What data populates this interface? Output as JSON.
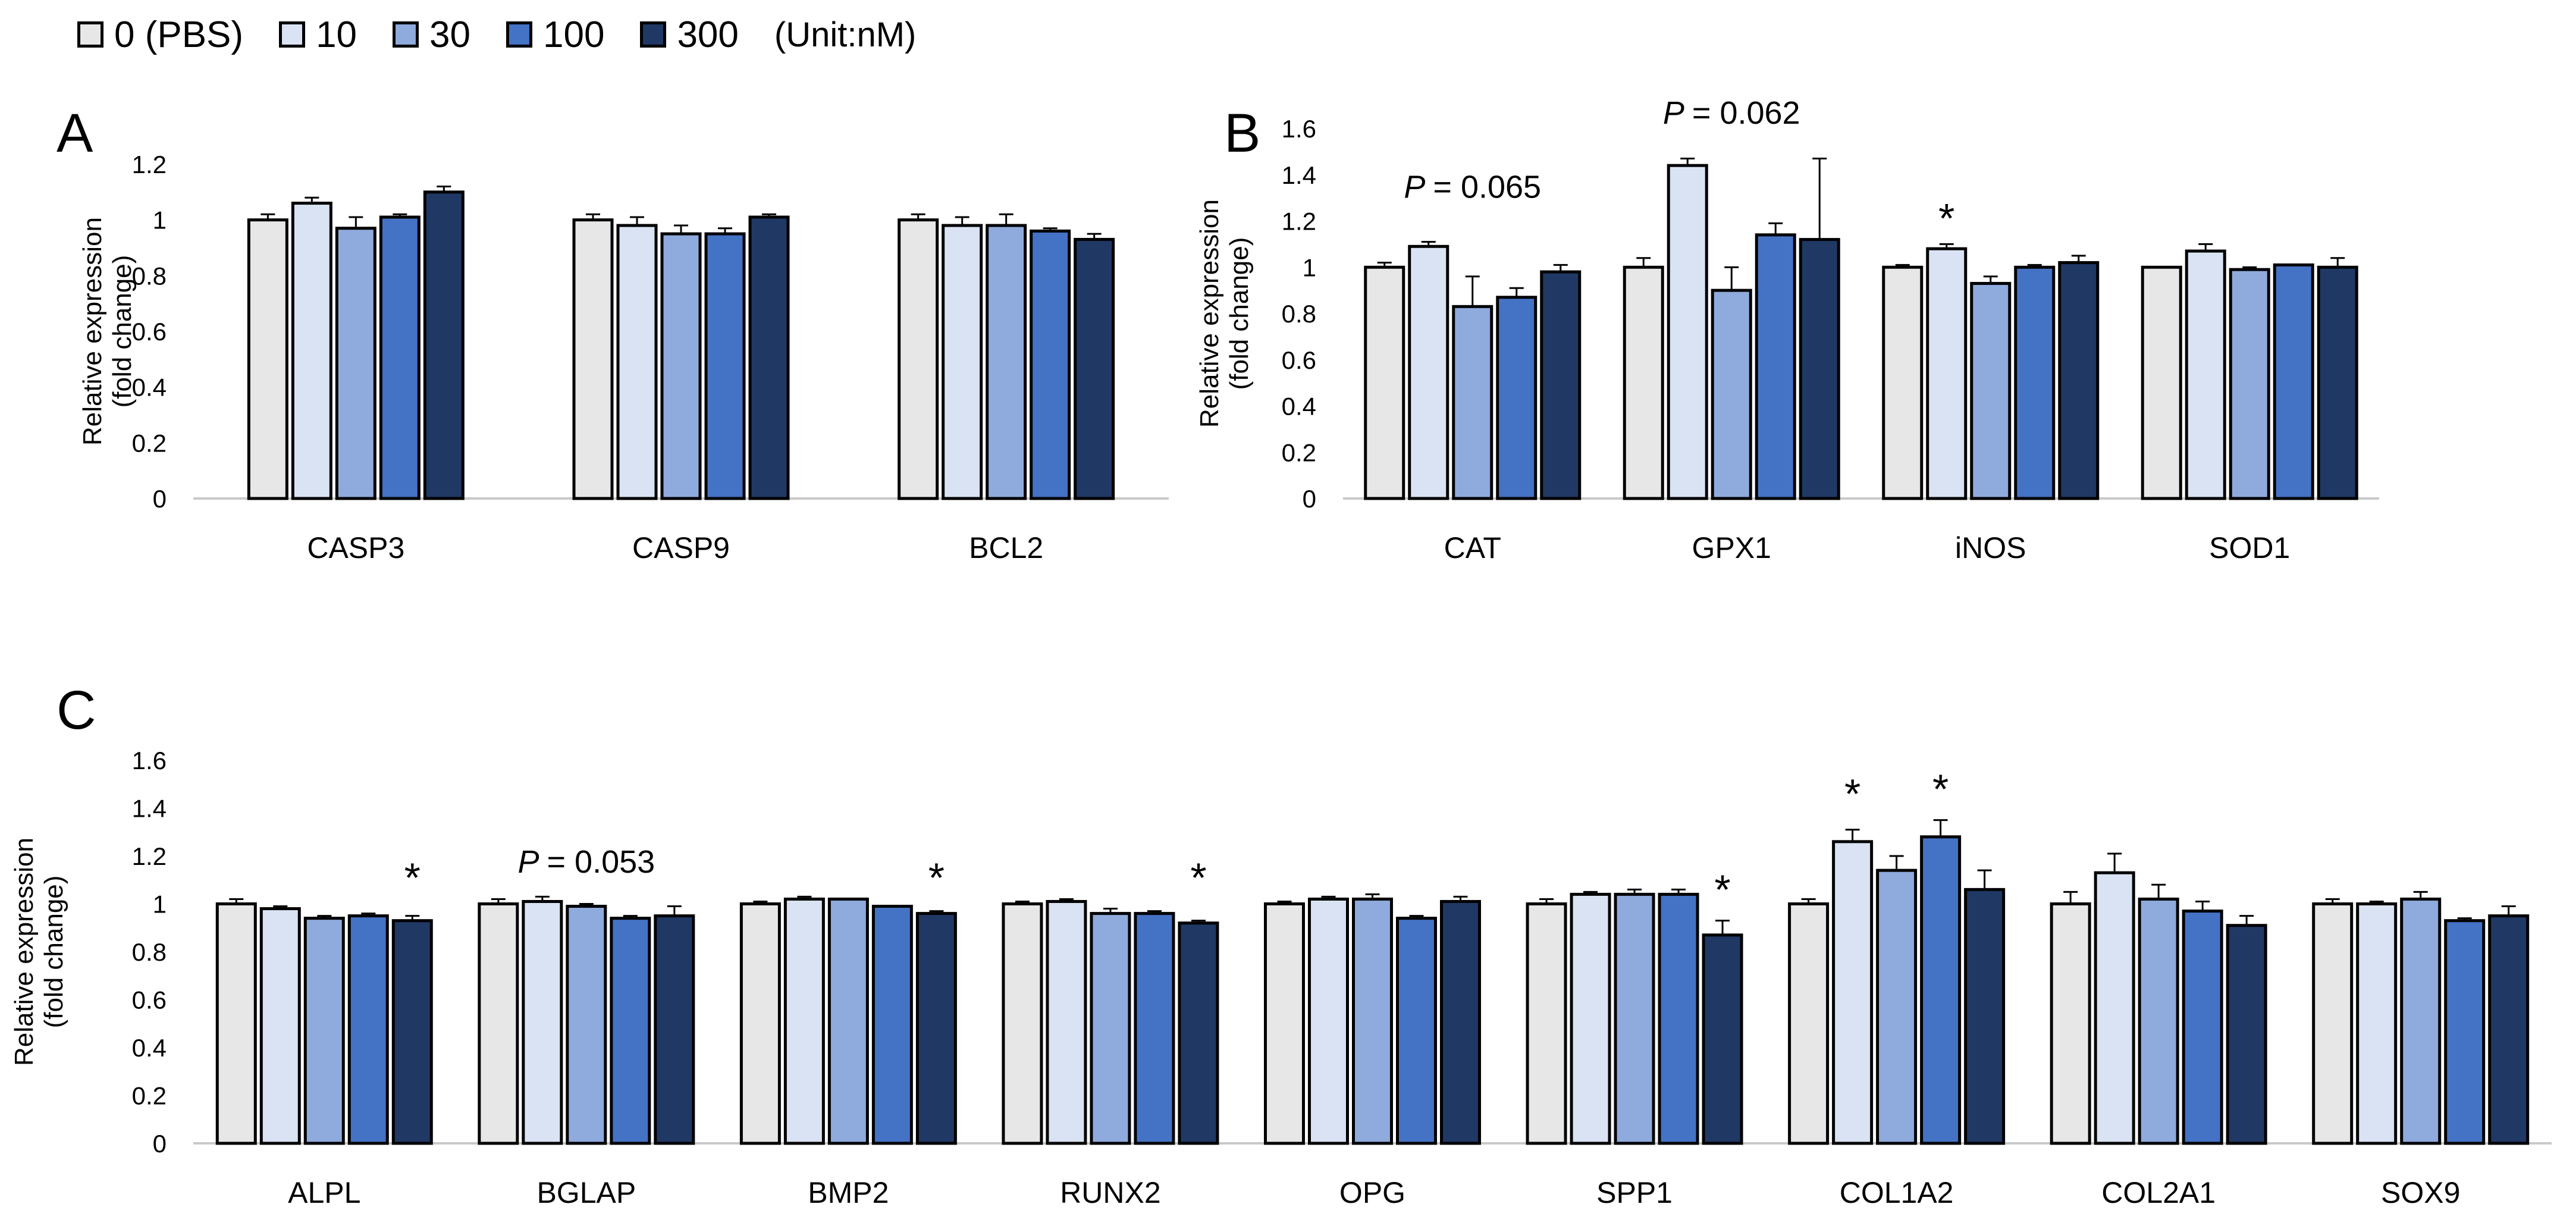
{
  "legend": {
    "items": [
      {
        "label": "0 (PBS)",
        "color": "#e7e7e7"
      },
      {
        "label": "10",
        "color": "#dae3f3"
      },
      {
        "label": "30",
        "color": "#8faadc"
      },
      {
        "label": "100",
        "color": "#4472c4"
      },
      {
        "label": "300",
        "color": "#203864"
      }
    ],
    "unit": "(Unit:nM)"
  },
  "chart_data": [
    {
      "panel": "A",
      "type": "bar",
      "ylabel": "Relative expression",
      "ylabel2": "(fold change)",
      "ylim": [
        0,
        1.2
      ],
      "yticks": [
        0,
        0.2,
        0.4,
        0.6,
        0.8,
        1,
        1.2
      ],
      "series_names": [
        "0 (PBS)",
        "10",
        "30",
        "100",
        "300"
      ],
      "categories": [
        {
          "name": "CASP3",
          "values": [
            1.0,
            1.06,
            0.97,
            1.01,
            1.1
          ],
          "errors": [
            0.02,
            0.02,
            0.04,
            0.01,
            0.02
          ]
        },
        {
          "name": "CASP9",
          "values": [
            1.0,
            0.98,
            0.95,
            0.95,
            1.01
          ],
          "errors": [
            0.02,
            0.03,
            0.03,
            0.02,
            0.01
          ]
        },
        {
          "name": "BCL2",
          "values": [
            1.0,
            0.98,
            0.98,
            0.96,
            0.93
          ],
          "errors": [
            0.02,
            0.03,
            0.04,
            0.01,
            0.02
          ]
        }
      ],
      "annotations": []
    },
    {
      "panel": "B",
      "type": "bar",
      "ylabel": "Relative expression",
      "ylabel2": "(fold change)",
      "ylim": [
        0,
        1.6
      ],
      "yticks": [
        0,
        0.2,
        0.4,
        0.6,
        0.8,
        1,
        1.2,
        1.4,
        1.6
      ],
      "series_names": [
        "0 (PBS)",
        "10",
        "30",
        "100",
        "300"
      ],
      "categories": [
        {
          "name": "CAT",
          "values": [
            1.0,
            1.09,
            0.83,
            0.87,
            0.98
          ],
          "errors": [
            0.02,
            0.02,
            0.13,
            0.04,
            0.03
          ]
        },
        {
          "name": "GPX1",
          "values": [
            1.0,
            1.44,
            0.9,
            1.14,
            1.12
          ],
          "errors": [
            0.04,
            0.03,
            0.1,
            0.05,
            0.35
          ]
        },
        {
          "name": "iNOS",
          "values": [
            1.0,
            1.08,
            0.93,
            1.0,
            1.02
          ],
          "errors": [
            0.01,
            0.02,
            0.03,
            0.01,
            0.03
          ]
        },
        {
          "name": "SOD1",
          "values": [
            1.0,
            1.07,
            0.99,
            1.01,
            1.0
          ],
          "errors": [
            0.0,
            0.03,
            0.01,
            0.0,
            0.04
          ]
        }
      ],
      "annotations": [
        {
          "category": 0,
          "text": "= 0.065",
          "prefix": "P",
          "y": 1.3
        },
        {
          "category": 1,
          "text": "= 0.062",
          "prefix": "P",
          "y": 1.62
        },
        {
          "category": 2,
          "bar": 1,
          "text": "*",
          "y": 1.15
        }
      ]
    },
    {
      "panel": "C",
      "type": "bar",
      "ylabel": "Relative expression",
      "ylabel2": "(fold change)",
      "ylim": [
        0,
        1.6
      ],
      "yticks": [
        0,
        0.2,
        0.4,
        0.6,
        0.8,
        1,
        1.2,
        1.4,
        1.6
      ],
      "series_names": [
        "0 (PBS)",
        "10",
        "30",
        "100",
        "300"
      ],
      "categories": [
        {
          "name": "ALPL",
          "values": [
            1.0,
            0.98,
            0.94,
            0.95,
            0.93
          ],
          "errors": [
            0.02,
            0.01,
            0.01,
            0.01,
            0.02
          ]
        },
        {
          "name": "BGLAP",
          "values": [
            1.0,
            1.01,
            0.99,
            0.94,
            0.95
          ],
          "errors": [
            0.02,
            0.02,
            0.01,
            0.01,
            0.04
          ]
        },
        {
          "name": "BMP2",
          "values": [
            1.0,
            1.02,
            1.02,
            0.99,
            0.96
          ],
          "errors": [
            0.01,
            0.01,
            0.0,
            0.0,
            0.01
          ]
        },
        {
          "name": "RUNX2",
          "values": [
            1.0,
            1.01,
            0.96,
            0.96,
            0.92
          ],
          "errors": [
            0.01,
            0.01,
            0.02,
            0.01,
            0.01
          ]
        },
        {
          "name": "OPG",
          "values": [
            1.0,
            1.02,
            1.02,
            0.94,
            1.01
          ],
          "errors": [
            0.01,
            0.01,
            0.02,
            0.01,
            0.02
          ]
        },
        {
          "name": "SPP1",
          "values": [
            1.0,
            1.04,
            1.04,
            1.04,
            0.87
          ],
          "errors": [
            0.02,
            0.01,
            0.02,
            0.02,
            0.06
          ]
        },
        {
          "name": "COL1A2",
          "values": [
            1.0,
            1.26,
            1.14,
            1.28,
            1.06
          ],
          "errors": [
            0.02,
            0.05,
            0.06,
            0.07,
            0.08
          ]
        },
        {
          "name": "COL2A1",
          "values": [
            1.0,
            1.13,
            1.02,
            0.97,
            0.91
          ],
          "errors": [
            0.05,
            0.08,
            0.06,
            0.04,
            0.04
          ]
        },
        {
          "name": "SOX9",
          "values": [
            1.0,
            1.0,
            1.02,
            0.93,
            0.95
          ],
          "errors": [
            0.02,
            0.01,
            0.03,
            0.01,
            0.04
          ]
        }
      ],
      "annotations": [
        {
          "category": 0,
          "bar": 4,
          "text": "*",
          "y": 1.05
        },
        {
          "category": 1,
          "text": "= 0.053",
          "prefix": "P",
          "y": 1.13
        },
        {
          "category": 2,
          "bar": 4,
          "text": "*",
          "y": 1.05
        },
        {
          "category": 3,
          "bar": 4,
          "text": "*",
          "y": 1.05
        },
        {
          "category": 5,
          "bar": 4,
          "text": "*",
          "y": 1.0
        },
        {
          "category": 6,
          "bar": 1,
          "text": "*",
          "y": 1.4
        },
        {
          "category": 6,
          "bar": 3,
          "text": "*",
          "y": 1.42
        }
      ]
    }
  ]
}
